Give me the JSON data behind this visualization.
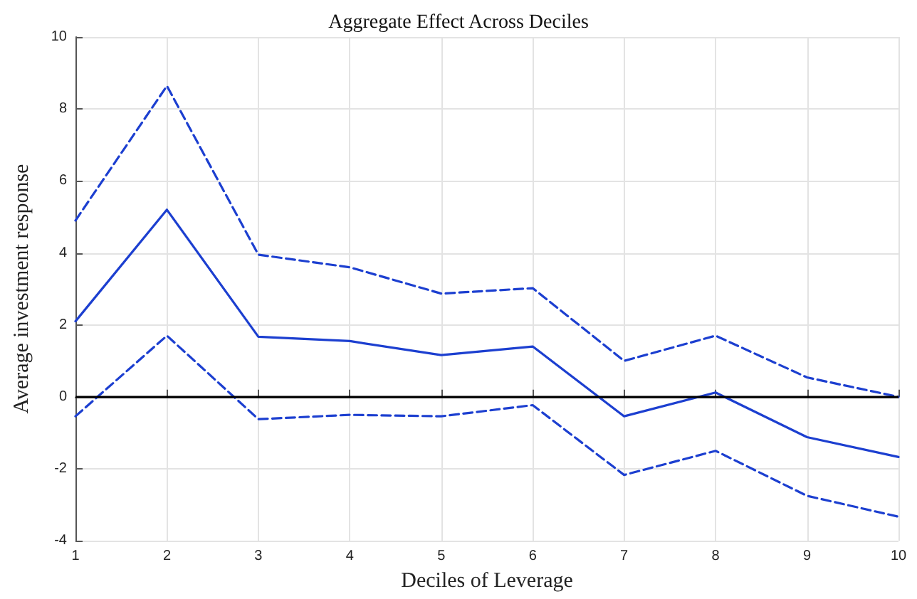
{
  "chart_data": {
    "type": "line",
    "title": "Aggregate Effect Across Deciles",
    "xlabel": "Deciles of Leverage",
    "ylabel": "Average investment response",
    "x": [
      1,
      2,
      3,
      4,
      5,
      6,
      7,
      8,
      9,
      10
    ],
    "series": [
      {
        "color": "#1c3fd0",
        "line_style": "solid",
        "values": [
          2.1,
          5.2,
          1.67,
          1.55,
          1.16,
          1.4,
          -0.54,
          0.12,
          -1.12,
          -1.67
        ]
      },
      {
        "color": "#1c3fd0",
        "line_style": "dashed",
        "values": [
          4.9,
          8.64,
          3.95,
          3.6,
          2.87,
          3.02,
          1.0,
          1.7,
          0.54,
          0.0
        ]
      },
      {
        "color": "#1c3fd0",
        "line_style": "dashed",
        "values": [
          -0.54,
          1.7,
          -0.62,
          -0.5,
          -0.54,
          -0.23,
          -2.17,
          -1.5,
          -2.75,
          -3.33
        ]
      }
    ],
    "xlim": [
      1,
      10
    ],
    "xticks": [
      1,
      2,
      3,
      4,
      5,
      6,
      7,
      8,
      9,
      10
    ],
    "ylim": [
      -4,
      10
    ],
    "yticks": [
      -4,
      -2,
      0,
      2,
      4,
      6,
      8,
      10
    ],
    "grid": true,
    "marker": "none",
    "ref_lines": [
      {
        "axis": "y",
        "value": 0,
        "color": "#000000",
        "line_style": "solid"
      }
    ]
  }
}
